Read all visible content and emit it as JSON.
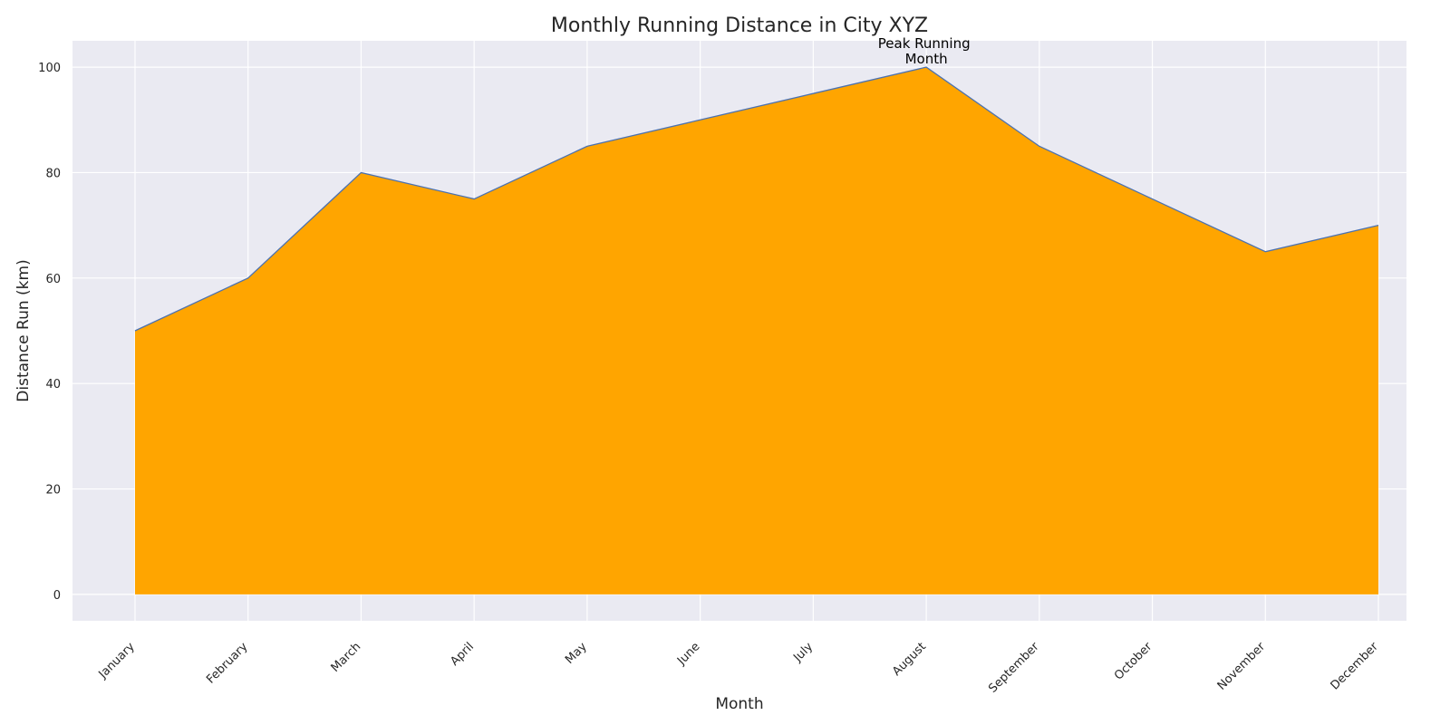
{
  "chart_data": {
    "type": "area",
    "title": "Monthly Running Distance in City XYZ",
    "xlabel": "Month",
    "ylabel": "Distance Run (km)",
    "categories": [
      "January",
      "February",
      "March",
      "April",
      "May",
      "June",
      "July",
      "August",
      "September",
      "October",
      "November",
      "December"
    ],
    "values": [
      50,
      60,
      80,
      75,
      85,
      90,
      95,
      100,
      85,
      75,
      65,
      70
    ],
    "ylim": [
      -5,
      105
    ],
    "yticks": [
      0,
      20,
      40,
      60,
      80,
      100
    ],
    "grid": true,
    "fill_color": "#ffa500",
    "line_color": "#4c72b0",
    "background_color": "#eaeaf2",
    "annotation": {
      "category": "August",
      "value": 100,
      "lines": [
        "Peak Running",
        "Month"
      ]
    }
  }
}
